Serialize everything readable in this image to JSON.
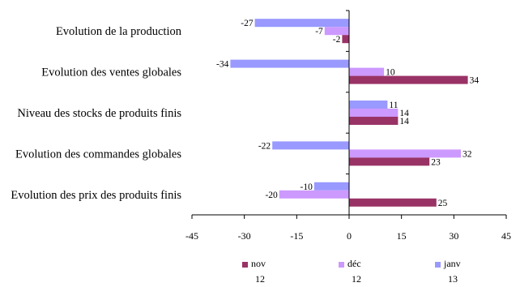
{
  "chart_data": {
    "type": "bar",
    "orientation": "horizontal",
    "categories": [
      "Evolution de la production",
      "Evolution des ventes globales",
      "Niveau des stocks de produits finis",
      "Evolution des commandes globales",
      "Evolution des prix des produits finis"
    ],
    "series": [
      {
        "name": "nov",
        "sub": "12",
        "color": "#993366",
        "values": [
          -2,
          34,
          14,
          23,
          25
        ]
      },
      {
        "name": "déc",
        "sub": "12",
        "color": "#CC99FF",
        "values": [
          -7,
          10,
          14,
          32,
          -20
        ]
      },
      {
        "name": "janv",
        "sub": "13",
        "color": "#9999FF",
        "values": [
          -27,
          -34,
          11,
          -22,
          -10
        ]
      }
    ],
    "xlim": [
      -45,
      45
    ],
    "xticks": [
      -45,
      -30,
      -15,
      0,
      15,
      30,
      45
    ],
    "grid": false,
    "legend_position": "bottom"
  }
}
